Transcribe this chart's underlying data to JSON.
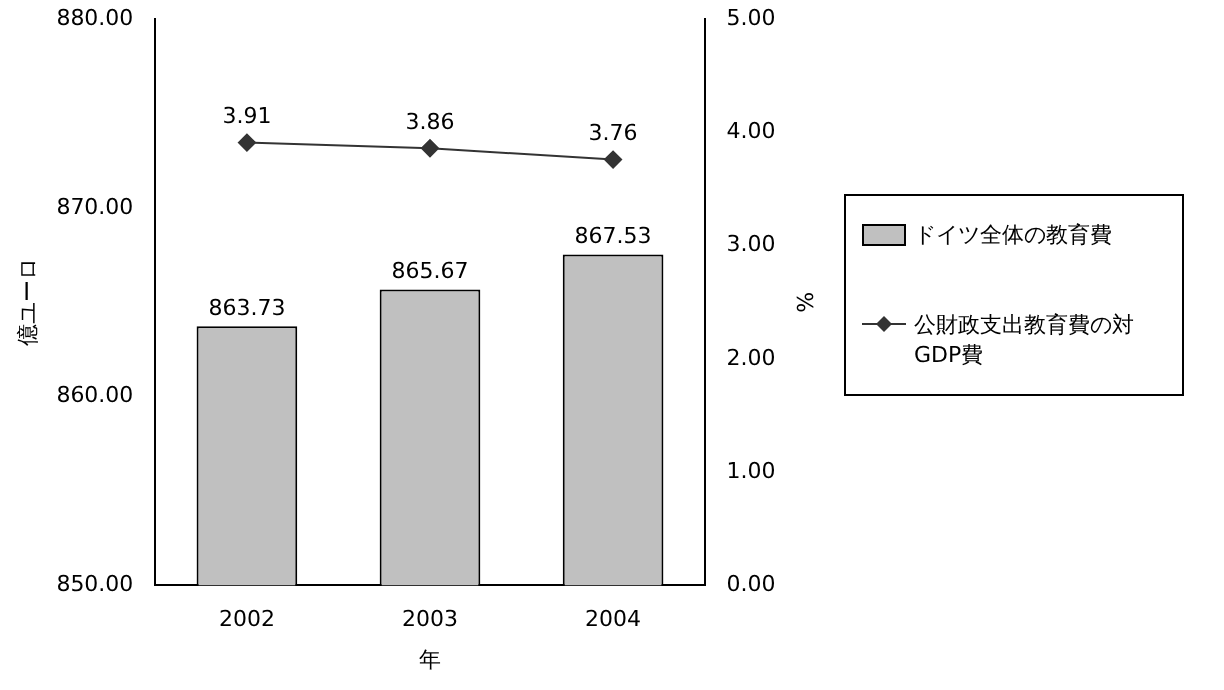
{
  "chart_data": {
    "type": "bar",
    "categories": [
      "2002",
      "2003",
      "2004"
    ],
    "xlabel": "年",
    "ylabel": "億ユーロ",
    "y2label": "%",
    "series": [
      {
        "name": "ドイツ全体の教育費",
        "color": "#c0c0c0",
        "values": [
          863.73,
          865.67,
          867.53
        ]
      },
      {
        "name": "公財政支出教育費の対GDP費",
        "type": "line",
        "axis": "y2",
        "color": "#333333",
        "values": [
          3.91,
          3.86,
          3.76
        ]
      }
    ],
    "ylim": [
      850,
      880
    ],
    "yticks": [
      {
        "value": 850,
        "label": "850.00"
      },
      {
        "value": 860,
        "label": "860.00"
      },
      {
        "value": 870,
        "label": "870.00"
      },
      {
        "value": 880,
        "label": "880.00"
      }
    ],
    "y2lim": [
      0,
      5
    ],
    "y2ticks": [
      {
        "value": 0,
        "label": "0.00"
      },
      {
        "value": 1,
        "label": "1.00"
      },
      {
        "value": 2,
        "label": "2.00"
      },
      {
        "value": 3,
        "label": "3.00"
      },
      {
        "value": 4,
        "label": "4.00"
      },
      {
        "value": 5,
        "label": "5.00"
      }
    ],
    "data_labels": true,
    "marker": "diamond",
    "line_style": "solid",
    "grid": false,
    "legend": "right"
  }
}
